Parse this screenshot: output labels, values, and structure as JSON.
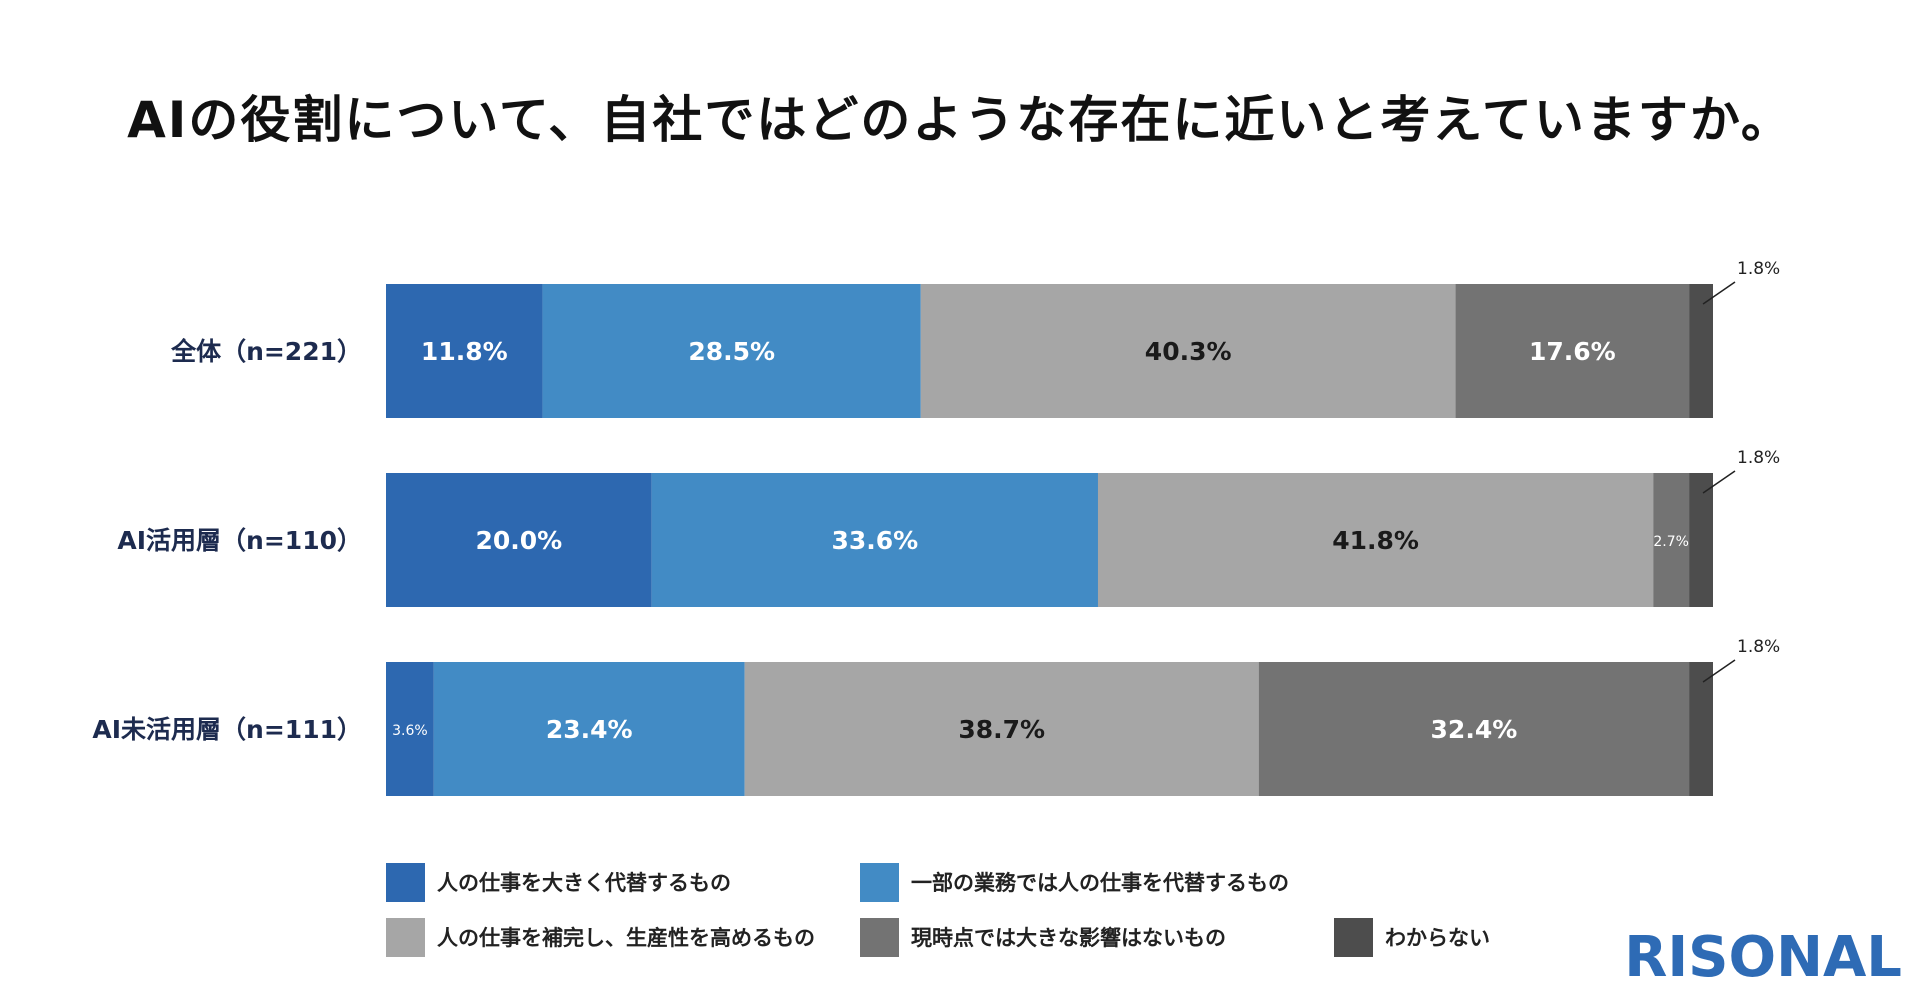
{
  "title": "AIの役割について、自社ではどのような存在に近いと考えていますか。",
  "logo": "RISONAL",
  "chart_data": {
    "type": "bar",
    "orientation": "horizontal",
    "stacked": true,
    "normalized": true,
    "title": "AIの役割について、自社ではどのような存在に近いと考えていますか。",
    "categories": [
      "全体（n=221）",
      "AI活用層（n=110）",
      "AI未活用層（n=111）"
    ],
    "value_unit": "%",
    "series": [
      {
        "name": "人の仕事を大きく代替するもの",
        "values": [
          11.8,
          20.0,
          3.6
        ],
        "labels": [
          "11.8%",
          "20.0%",
          "3.6%"
        ],
        "color": "#2d68b0"
      },
      {
        "name": "一部の業務では人の仕事を代替するもの",
        "values": [
          28.5,
          33.6,
          23.4
        ],
        "labels": [
          "28.5%",
          "33.6%",
          "23.4%"
        ],
        "color": "#428bc5"
      },
      {
        "name": "人の仕事を補完し、生産性を高めるもの",
        "values": [
          40.3,
          41.8,
          38.7
        ],
        "labels": [
          "40.3%",
          "41.8%",
          "38.7%"
        ],
        "color": "#a6a6a6"
      },
      {
        "name": "現時点では大きな影響はないもの",
        "values": [
          17.6,
          2.7,
          32.4
        ],
        "labels": [
          "17.6%",
          "2.7%",
          "32.4%"
        ],
        "color": "#737373"
      },
      {
        "name": "わからない",
        "values": [
          1.8,
          1.8,
          1.8
        ],
        "labels": [
          "1.8%",
          "1.8%",
          "1.8%"
        ],
        "color": "#4d4d4d"
      }
    ],
    "legend_position": "bottom",
    "grid": false
  }
}
